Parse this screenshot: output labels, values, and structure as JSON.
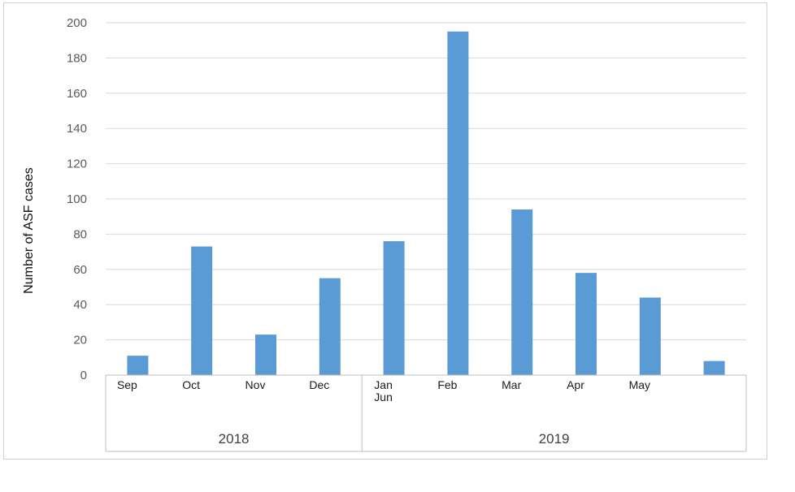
{
  "chart_data": {
    "type": "bar",
    "ylabel": "Number of ASF cases",
    "xlabel": "",
    "ylim": [
      0,
      200
    ],
    "yticks": [
      0,
      20,
      40,
      60,
      80,
      100,
      120,
      140,
      160,
      180,
      200
    ],
    "grid": true,
    "bar_color": "#5b9bd5",
    "categories": [
      "Sep",
      "Oct",
      "Nov",
      "Dec",
      "Jan",
      "Feb",
      "Mar",
      "Apr",
      "May",
      "Jun"
    ],
    "values": [
      11,
      73,
      23,
      55,
      76,
      195,
      94,
      58,
      44,
      8
    ],
    "groups": [
      {
        "label": "2018",
        "categories": [
          "Sep",
          "Oct",
          "Nov",
          "Dec"
        ]
      },
      {
        "label": "2019",
        "categories": [
          "Jan",
          "Feb",
          "Mar",
          "Apr",
          "May",
          "Jun"
        ]
      }
    ]
  }
}
